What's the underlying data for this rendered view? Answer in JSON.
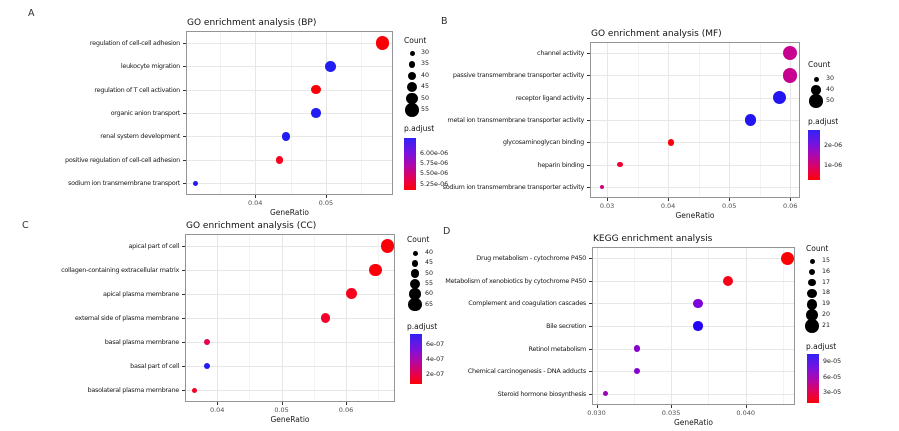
{
  "figure": {
    "background": "#ffffff"
  },
  "chart_data": [
    {
      "type": "scatter",
      "letter": "A",
      "title": "GO enrichment analysis (BP)",
      "xlabel": "GeneRatio",
      "x_ticks": [
        0.04,
        0.05
      ],
      "x_tick_labels": [
        "0.04",
        "0.05"
      ],
      "x_range": [
        0.0302,
        0.0595
      ],
      "categories": [
        "regulation of cell-cell adhesion",
        "leukocyte migration",
        "regulation of T cell activation",
        "organic anion transport",
        "renal system development",
        "positive regulation of cell-cell adhesion",
        "sodium ion transmembrane transport"
      ],
      "gene_ratio": [
        0.058,
        0.0507,
        0.0486,
        0.0486,
        0.0444,
        0.0434,
        0.0316
      ],
      "count": [
        55,
        47,
        43,
        43,
        40,
        37,
        30
      ],
      "dot_colors": [
        "#fa0007",
        "#221df3",
        "#fa0007",
        "#221df3",
        "#221df3",
        "#f6011e",
        "#2a18ee"
      ],
      "count_legend": {
        "title": "Count",
        "values": [
          "30",
          "35",
          "40",
          "45",
          "50",
          "55"
        ]
      },
      "padjust_legend": {
        "title": "p.adjust",
        "labels": [
          "6.00e-06",
          "5.75e-06",
          "5.50e-06",
          "5.25e-06"
        ],
        "gradient": [
          "#3222f5",
          "#7b12dd",
          "#b407a4",
          "#e30253",
          "#fb010a"
        ]
      }
    },
    {
      "type": "scatter",
      "letter": "B",
      "title": "GO enrichment analysis (MF)",
      "xlabel": "GeneRatio",
      "x_ticks": [
        0.03,
        0.04,
        0.05,
        0.06
      ],
      "x_tick_labels": [
        "0.03",
        "0.04",
        "0.05",
        "0.06"
      ],
      "x_range": [
        0.0272,
        0.0616
      ],
      "categories": [
        "channel activity",
        "passive transmembrane transporter activity",
        "receptor ligand activity",
        "metal ion transmembrane transporter activity",
        "glycosaminoglycan binding",
        "heparin binding",
        "sodium ion transmembrane transporter activity"
      ],
      "gene_ratio": [
        0.06,
        0.06,
        0.0583,
        0.0535,
        0.0405,
        0.0321,
        0.0291
      ],
      "count": [
        52,
        52,
        49,
        46,
        34,
        31,
        27
      ],
      "dot_colors": [
        "#c7018f",
        "#c7018f",
        "#2315f2",
        "#2315f2",
        "#f9010b",
        "#ef0134",
        "#cc0184"
      ],
      "count_legend": {
        "title": "Count",
        "values": [
          "30",
          "40",
          "50"
        ]
      },
      "padjust_legend": {
        "title": "p.adjust",
        "labels": [
          "2e-06",
          "1e-06"
        ],
        "gradient": [
          "#3222f5",
          "#7b12dd",
          "#b407a4",
          "#e30253",
          "#fb010a"
        ]
      }
    },
    {
      "type": "scatter",
      "letter": "C",
      "title": "GO enrichment analysis (CC)",
      "xlabel": "GeneRatio",
      "x_ticks": [
        0.04,
        0.05,
        0.06
      ],
      "x_tick_labels": [
        "0.04",
        "0.05",
        "0.06"
      ],
      "x_range": [
        0.035,
        0.0676
      ],
      "categories": [
        "apical part of cell",
        "collagen-containing extracellular matrix",
        "apical plasma membrane",
        "external side of plasma membrane",
        "basal plasma membrane",
        "basal part of cell",
        "basolateral plasma membrane"
      ],
      "gene_ratio": [
        0.0664,
        0.0646,
        0.0608,
        0.0568,
        0.0384,
        0.0384,
        0.0364
      ],
      "count": [
        65,
        62,
        58,
        53,
        43,
        43,
        40
      ],
      "dot_colors": [
        "#fa0109",
        "#fa0109",
        "#f8011c",
        "#f3012b",
        "#e6024d",
        "#1f1cf4",
        "#f30123"
      ],
      "count_legend": {
        "title": "Count",
        "values": [
          "40",
          "45",
          "50",
          "55",
          "60",
          "65"
        ]
      },
      "padjust_legend": {
        "title": "p.adjust",
        "labels": [
          "6e-07",
          "4e-07",
          "2e-07"
        ],
        "gradient": [
          "#3222f5",
          "#7b12dd",
          "#b407a4",
          "#e30253",
          "#fb010a"
        ]
      }
    },
    {
      "type": "scatter",
      "letter": "D",
      "title": "KEGG enrichment analysis",
      "xlabel": "GeneRatio",
      "x_ticks": [
        0.03,
        0.035,
        0.04
      ],
      "x_tick_labels": [
        "0.030",
        "0.035",
        "0.040"
      ],
      "x_range": [
        0.0297,
        0.0433
      ],
      "categories": [
        "Drug metabolism - cytochrome P450",
        "Metabolism of xenobiotics by cytochrome P450",
        "Complement and coagulation cascades",
        "Bile secretion",
        "Retinol metabolism",
        "Chemical carcinogenesis - DNA adducts",
        "Steroid hormone biosynthesis"
      ],
      "gene_ratio": [
        0.0428,
        0.0388,
        0.0368,
        0.0368,
        0.0327,
        0.0327,
        0.0306
      ],
      "count": [
        21,
        19,
        18,
        18,
        16,
        16,
        15
      ],
      "dot_colors": [
        "#fb0104",
        "#f60117",
        "#7b02d9",
        "#2306f4",
        "#8602cc",
        "#8602cc",
        "#9b02b8"
      ],
      "count_legend": {
        "title": "Count",
        "values": [
          "15",
          "16",
          "17",
          "18",
          "19",
          "20",
          "21"
        ]
      },
      "padjust_legend": {
        "title": "p.adjust",
        "labels": [
          "9e-05",
          "6e-05",
          "3e-05"
        ],
        "gradient": [
          "#3222f5",
          "#7b12dd",
          "#b407a4",
          "#e30253",
          "#fb010a"
        ]
      }
    }
  ]
}
